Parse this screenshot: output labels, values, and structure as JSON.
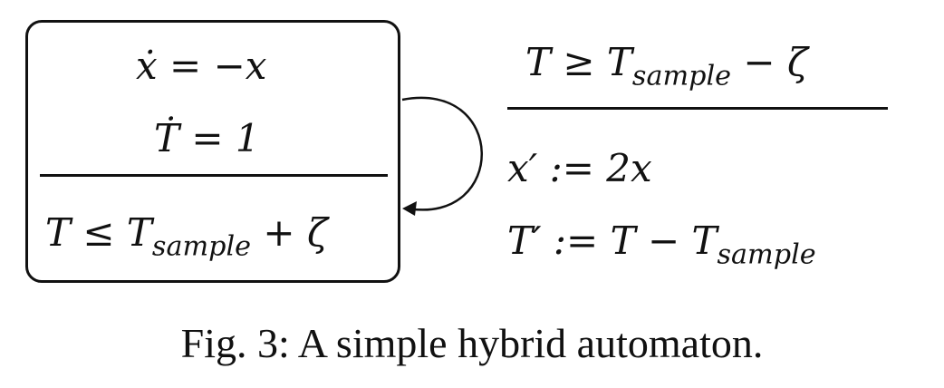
{
  "state": {
    "flow_x": "ẋ = −x",
    "flow_T": "Ṫ = 1",
    "invariant": "T ≤ T_{sample} + ζ"
  },
  "transition": {
    "guard": "T ≥ T_{sample} − ζ",
    "reset_x": "x′ := 2x",
    "reset_T": "T′ := T − T_{sample}"
  },
  "caption": "Fig. 3: A simple hybrid automaton."
}
